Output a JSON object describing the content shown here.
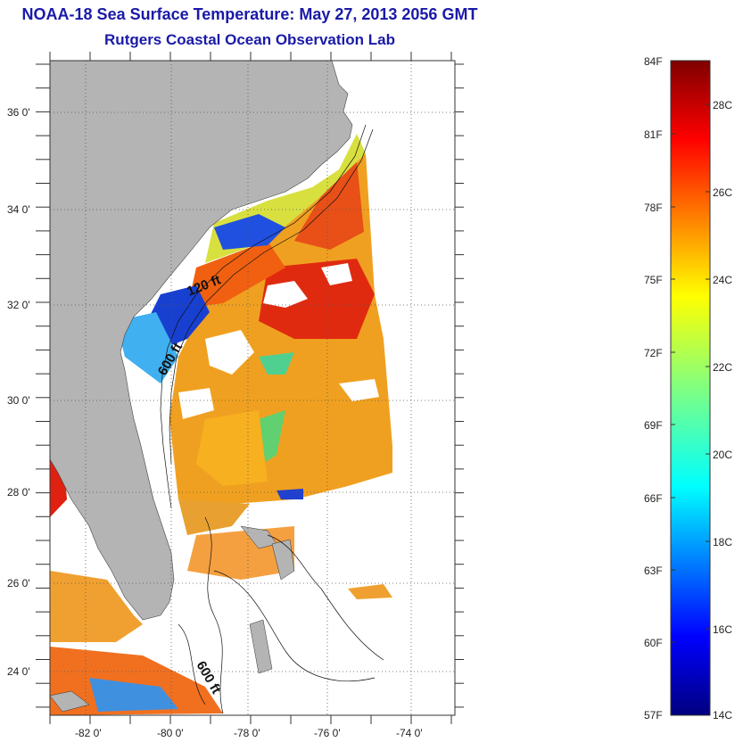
{
  "title": {
    "line1": "NOAA-18 Sea Surface Temperature:  May 27, 2013 2056 GMT",
    "line2": "Rutgers Coastal Ocean Observation Lab"
  },
  "map": {
    "lat_labels": [
      "36 0'",
      "34 0'",
      "32 0'",
      "30 0'",
      "28 0'",
      "26 0'",
      "24 0'"
    ],
    "lon_labels": [
      "-82 0'",
      "-80 0'",
      "-78 0'",
      "-76 0'",
      "-74 0'"
    ],
    "depth_labels": [
      "120 ft",
      "600 ft",
      "600 ft"
    ],
    "colors": {
      "land": "#b4b4b4",
      "background": "#ffffff"
    }
  },
  "colorbar": {
    "fahrenheit": [
      "84F",
      "81F",
      "78F",
      "75F",
      "72F",
      "69F",
      "66F",
      "63F",
      "60F",
      "57F"
    ],
    "celsius": [
      "28C",
      "26C",
      "24C",
      "22C",
      "20C",
      "18C",
      "16C",
      "14C"
    ],
    "colormap": "jet"
  }
}
